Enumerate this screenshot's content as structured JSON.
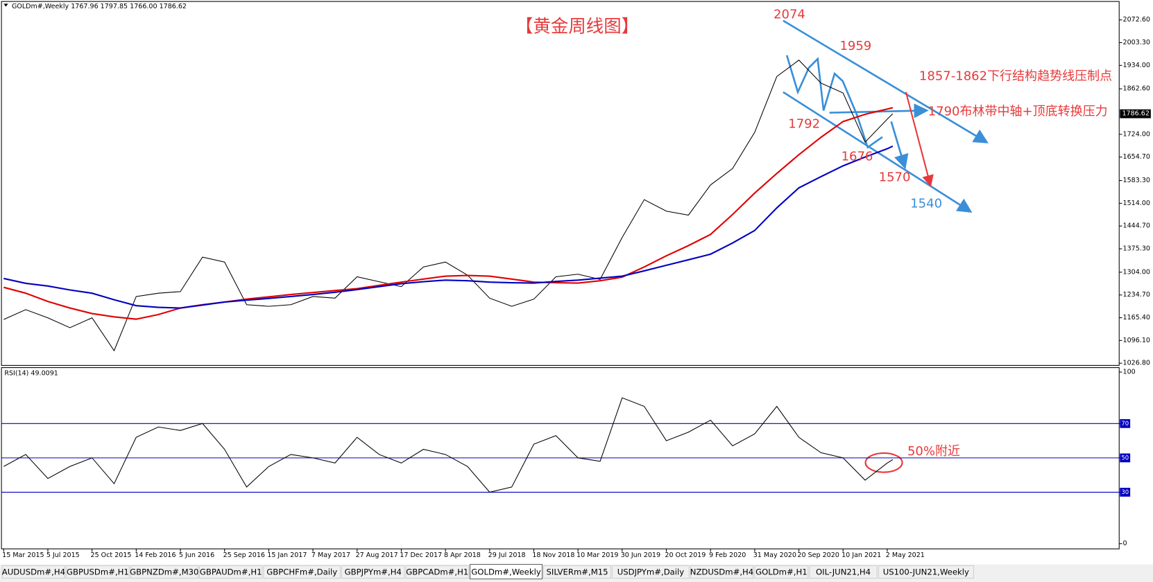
{
  "chart_data": [
    {
      "type": "line",
      "title": "【黄金周线图】",
      "info": "GOLDm#,Weekly 1767.96 1797.85 1766.00 1786.62",
      "x": [
        "15 Mar 2015",
        "10 May 2015",
        "5 Jul 2015",
        "30 Aug 2015",
        "25 Oct 2015",
        "20 Dec 2015",
        "14 Feb 2016",
        "10 Apr 2016",
        "5 Jun 2016",
        "31 Jul 2016",
        "25 Sep 2016",
        "20 Nov 2016",
        "15 Jan 2017",
        "12 Mar 2017",
        "7 May 2017",
        "2 Jul 2017",
        "27 Aug 2017",
        "22 Oct 2017",
        "17 Dec 2017",
        "11 Feb 2018",
        "8 Apr 2018",
        "3 Jun 2018",
        "29 Jul 2018",
        "23 Sep 2018",
        "18 Nov 2018",
        "13 Jan 2019",
        "10 Mar 2019",
        "5 May 2019",
        "30 Jun 2019",
        "25 Aug 2019",
        "20 Oct 2019",
        "15 Dec 2019",
        "9 Feb 2020",
        "5 Apr 2020",
        "31 May 2020",
        "26 Jul 2020",
        "20 Sep 2020",
        "15 Nov 2020",
        "10 Jan 2021",
        "7 Mar 2021",
        "2 May 2021",
        "16 May 2021"
      ],
      "series": [
        {
          "color": "#000000",
          "values": [
            1160,
            1190,
            1165,
            1135,
            1165,
            1065,
            1230,
            1240,
            1245,
            1350,
            1335,
            1205,
            1200,
            1205,
            1230,
            1225,
            1290,
            1275,
            1260,
            1320,
            1335,
            1295,
            1225,
            1200,
            1222,
            1290,
            1298,
            1282,
            1410,
            1525,
            1490,
            1478,
            1570,
            1620,
            1730,
            1900,
            1950,
            1880,
            1850,
            1700,
            1770,
            1787
          ]
        },
        {
          "color": "#e00000",
          "values": [
            1258,
            1240,
            1215,
            1195,
            1178,
            1168,
            1161,
            1175,
            1195,
            1205,
            1213,
            1222,
            1229,
            1236,
            1242,
            1248,
            1254,
            1264,
            1274,
            1283,
            1292,
            1294,
            1292,
            1283,
            1274,
            1272,
            1271,
            1278,
            1289,
            1320,
            1354,
            1385,
            1419,
            1480,
            1545,
            1605,
            1662,
            1715,
            1763,
            1785,
            1801,
            1805
          ]
        },
        {
          "color": "#0000c0",
          "values": [
            1285,
            1270,
            1262,
            1250,
            1240,
            1220,
            1202,
            1197,
            1195,
            1204,
            1213,
            1219,
            1224,
            1230,
            1236,
            1243,
            1251,
            1260,
            1269,
            1275,
            1280,
            1278,
            1274,
            1272,
            1271,
            1276,
            1280,
            1286,
            1292,
            1308,
            1325,
            1342,
            1359,
            1393,
            1431,
            1500,
            1561,
            1595,
            1628,
            1655,
            1680,
            1688
          ]
        }
      ],
      "xlim": [
        "15 Mar 2015",
        "11 Dec 2022"
      ],
      "xticks": [
        "15 Mar 2015",
        "5 Jul 2015",
        "25 Oct 2015",
        "14 Feb 2016",
        "5 Jun 2016",
        "25 Sep 2016",
        "15 Jan 2017",
        "7 May 2017",
        "27 Aug 2017",
        "17 Dec 2017",
        "8 Apr 2018",
        "29 Jul 2018",
        "18 Nov 2018",
        "10 Mar 2019",
        "30 Jun 2019",
        "20 Oct 2019",
        "9 Feb 2020",
        "31 May 2020",
        "20 Sep 2020",
        "10 Jan 2021",
        "2 May 2021"
      ],
      "ylim": [
        1020.1,
        2128.7
      ],
      "yticks": [
        {
          "value": 1026.8,
          "label": "1026.80"
        },
        {
          "value": 1096.1,
          "label": "1096.10"
        },
        {
          "value": 1165.4,
          "label": "1165.40"
        },
        {
          "value": 1234.7,
          "label": "1234.70"
        },
        {
          "value": 1304,
          "label": "1304.00"
        },
        {
          "value": 1375.3,
          "label": "1375.30"
        },
        {
          "value": 1444.7,
          "label": "1444.70"
        },
        {
          "value": 1514,
          "label": "1514.00"
        },
        {
          "value": 1583.3,
          "label": "1583.30"
        },
        {
          "value": 1654.7,
          "label": "1654.70"
        },
        {
          "value": 1724,
          "label": "1724.00"
        },
        {
          "value": 1862.6,
          "label": "1862.60"
        },
        {
          "value": 1934,
          "label": "1934.00"
        },
        {
          "value": 2003.3,
          "label": "2003.30"
        },
        {
          "value": 2072.6,
          "label": "2072.60"
        }
      ],
      "last_price": {
        "value": 1786.62,
        "label": "1786.62"
      },
      "annotations": [
        {
          "text": "2074",
          "color": "#e8393a"
        },
        {
          "text": "1959",
          "color": "#e8393a"
        },
        {
          "text": "1857-1862下行结构趋势线压制点",
          "color": "#e8393a"
        },
        {
          "text": "1790布林带中轴+顶底转换压力",
          "color": "#e8393a"
        },
        {
          "text": "1792",
          "color": "#e8393a"
        },
        {
          "text": "1676",
          "color": "#e8393a"
        },
        {
          "text": "1570",
          "color": "#e8393a"
        },
        {
          "text": "1540",
          "color": "#3a8fd8"
        }
      ]
    },
    {
      "type": "line",
      "title": "RSI(14) 49.0091",
      "series": [
        {
          "color": "#000000",
          "values": [
            45,
            52,
            38,
            45,
            50,
            35,
            62,
            68,
            66,
            70,
            55,
            33,
            45,
            52,
            50,
            47,
            62,
            52,
            47,
            55,
            52,
            45,
            30,
            33,
            58,
            63,
            50,
            48,
            85,
            80,
            60,
            65,
            72,
            57,
            64,
            80,
            62,
            53,
            50,
            37,
            47,
            49
          ]
        }
      ],
      "ylim": [
        -3.0,
        102.6
      ],
      "yticks": [
        0,
        30,
        50,
        70,
        100
      ],
      "annotations": [
        {
          "text": "50%附近",
          "color": "#e8393a"
        }
      ]
    }
  ],
  "tabs": [
    "AUDUSDm#,H4",
    "GBPUSDm#,H1",
    "GBPNZDm#,M30",
    "GBPAUDm#,H1",
    "GBPCHFm#,Daily",
    "GBPJPYm#,H4",
    "GBPCADm#,H1",
    "GOLDm#,Weekly",
    "SILVERm#,M15",
    "USDJPYm#,Daily",
    "NZDUSDm#,H4",
    "GOLDm#,H1",
    "OIL-JUN21,H4",
    "US100-JUN21,Weekly"
  ],
  "active_tab": 7
}
